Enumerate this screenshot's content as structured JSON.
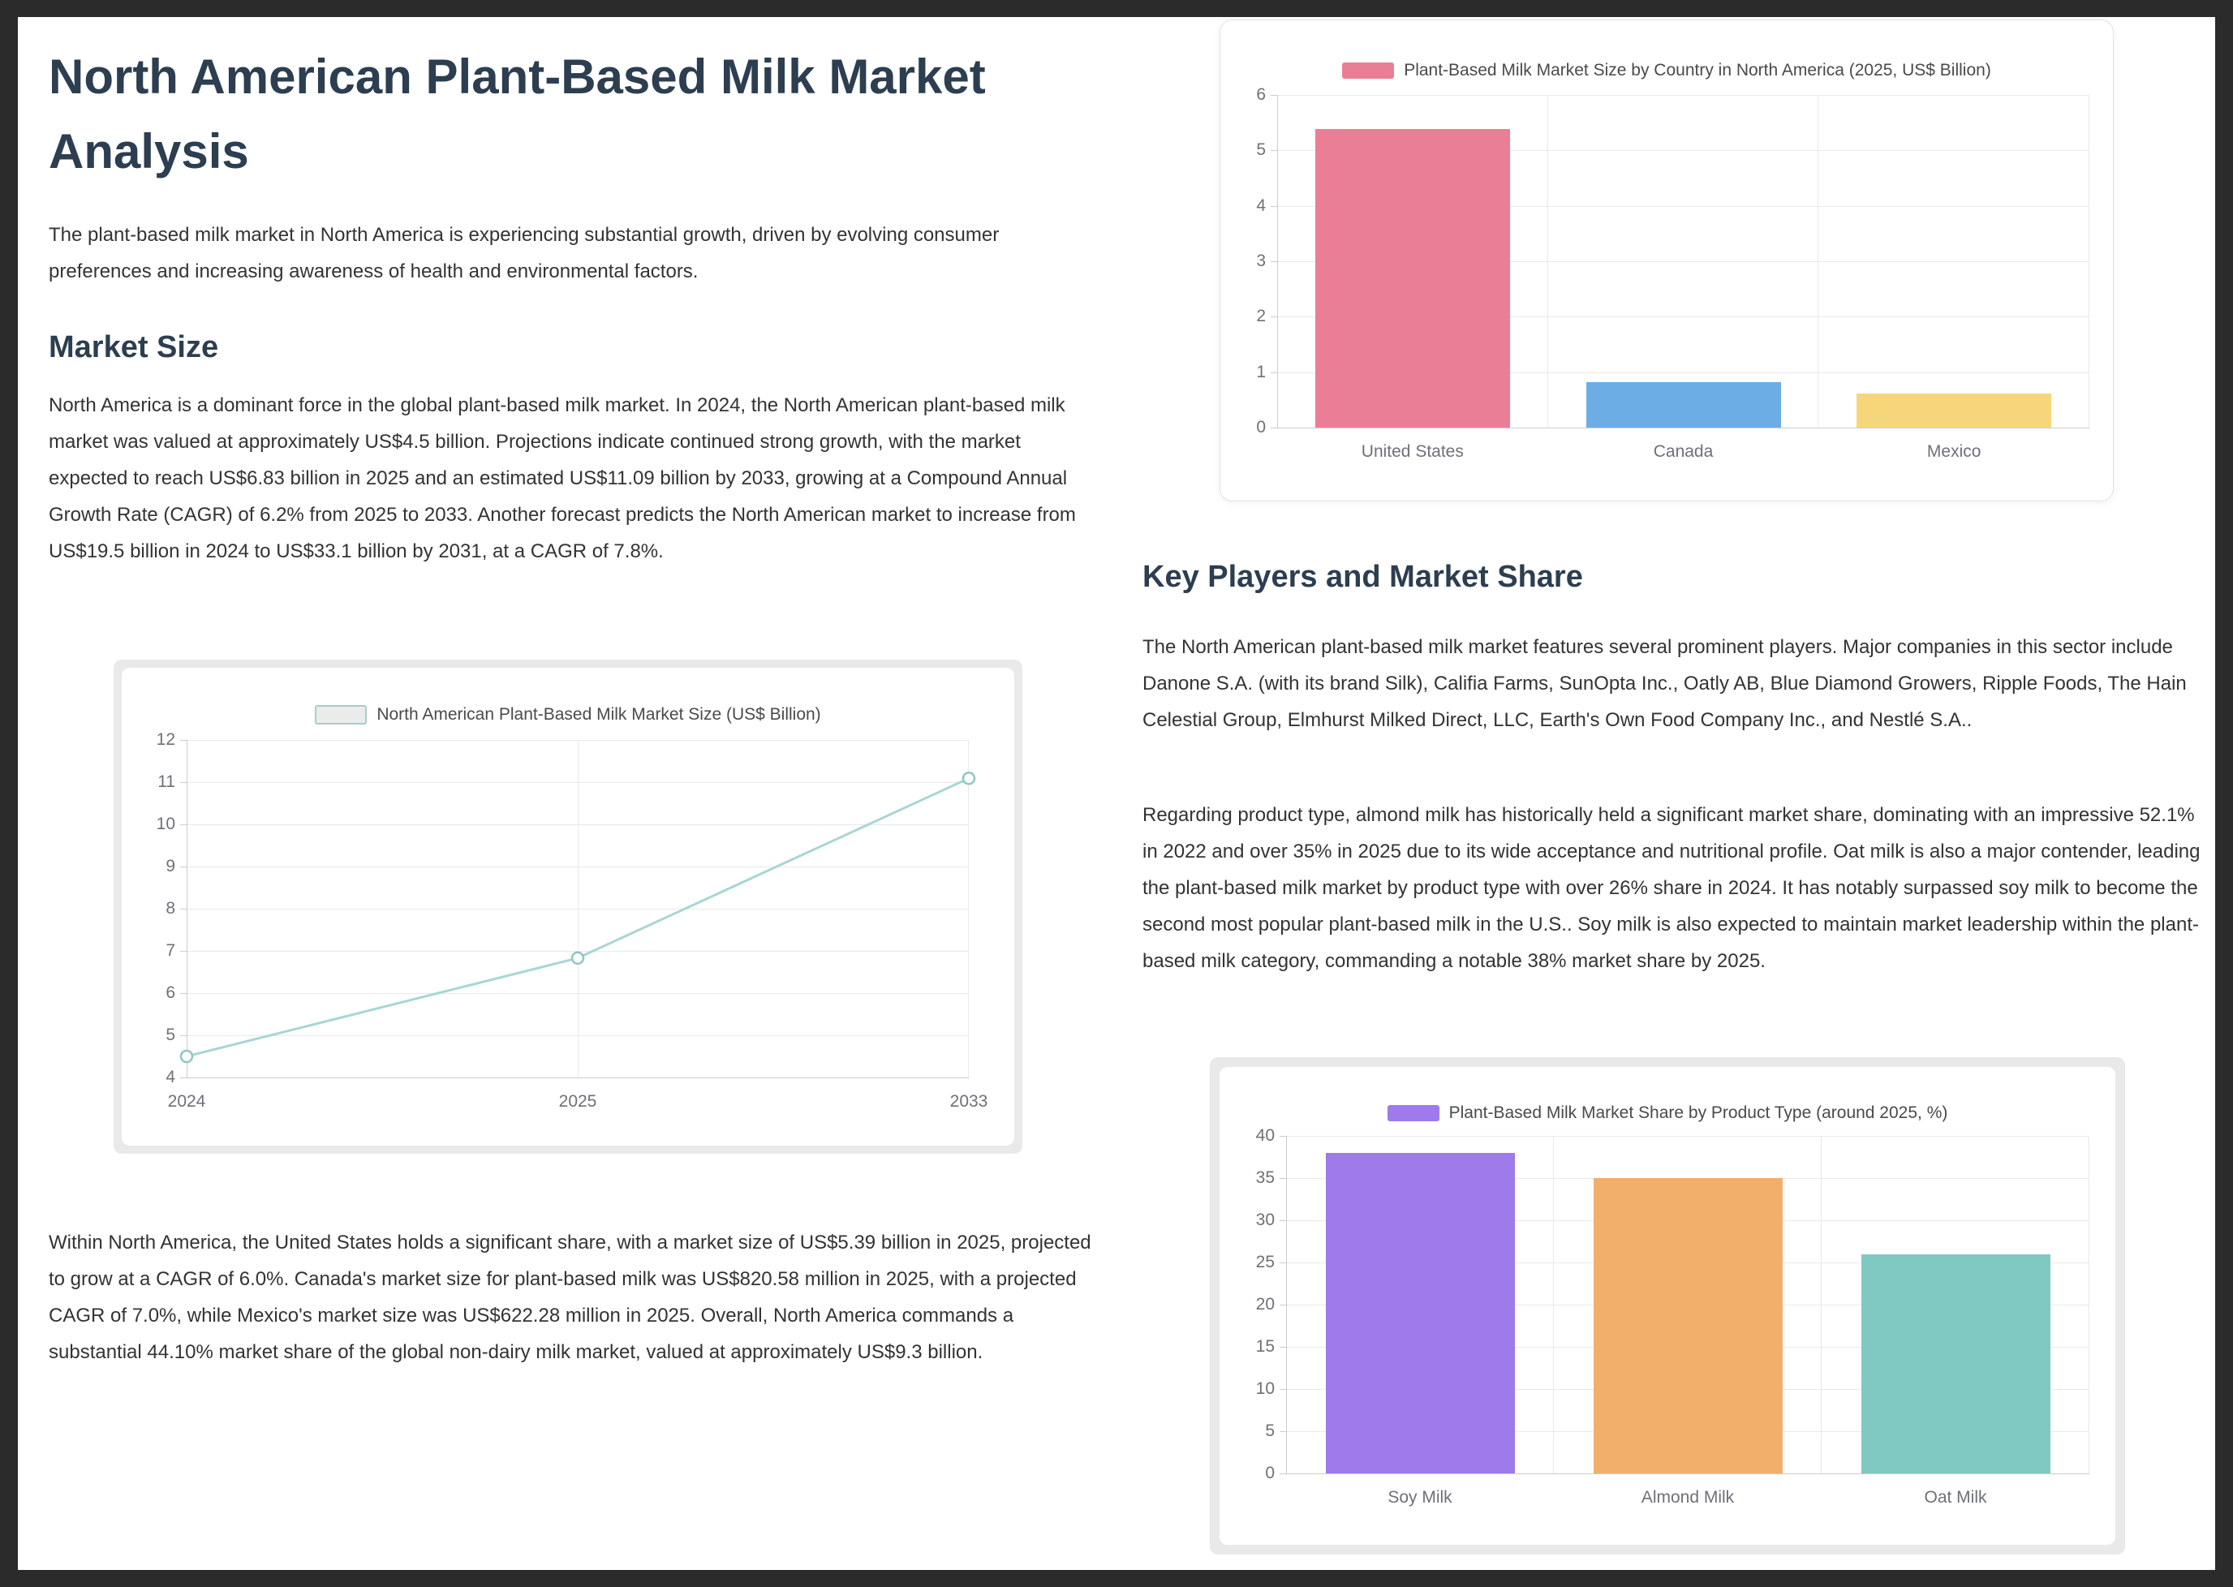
{
  "page": {
    "title": "North American Plant-Based Milk Market Analysis",
    "intro": "The plant-based milk market in North America is experiencing substantial growth, driven by evolving consumer preferences and increasing awareness of health and environmental factors.",
    "market_size": {
      "heading": "Market Size",
      "p1": "North America is a dominant force in the global plant-based milk market. In 2024, the North American plant-based milk market was valued at approximately US$4.5 billion. Projections indicate continued strong growth, with the market expected to reach US$6.83 billion in 2025 and an estimated US$11.09 billion by 2033, growing at a Compound Annual Growth Rate (CAGR) of 6.2% from 2025 to 2033. Another forecast predicts the North American market to increase from US$19.5 billion in 2024 to US$33.1 billion by 2031, at a CAGR of 7.8%.",
      "p2": "Within North America, the United States holds a significant share, with a market size of US$5.39 billion in 2025, projected to grow at a CAGR of 6.0%. Canada's market size for plant-based milk was US$820.58 million in 2025, with a projected CAGR of 7.0%, while Mexico's market size was US$622.28 million in 2025. Overall, North America commands a substantial 44.10% market share of the global non-dairy milk market, valued at approximately US$9.3 billion."
    },
    "key_players": {
      "heading": "Key Players and Market Share",
      "p1": "The North American plant-based milk market features several prominent players. Major companies in this sector include Danone S.A. (with its brand Silk), Califia Farms, SunOpta Inc., Oatly AB, Blue Diamond Growers, Ripple Foods, The Hain Celestial Group, Elmhurst Milked Direct, LLC, Earth's Own Food Company Inc., and Nestlé S.A..",
      "p2": "Regarding product type, almond milk has historically held a significant market share, dominating with an impressive 52.1% in 2022 and over 35% in 2025 due to its wide acceptance and nutritional profile. Oat milk is also a major contender, leading the plant-based milk market by product type with over 26% share in 2024. It has notably surpassed soy milk to become the second most popular plant-based milk in the U.S.. Soy milk is also expected to maintain market leadership within the plant-based milk category, commanding a notable 38% market share by 2025."
    }
  },
  "colors": {
    "heading": "#2c3e50",
    "body_text": "#333333",
    "page_background": "#ffffff",
    "outer_background": "#2b2b2b",
    "gridline": "#e9e9e9",
    "axis_line": "#cccccc",
    "axis_label": "#6e7079"
  },
  "chart_data": [
    {
      "type": "line",
      "legend": "North American Plant-Based Milk Market Size (US$ Billion)",
      "x": [
        "2024",
        "2025",
        "2033"
      ],
      "values": [
        4.5,
        6.83,
        11.09
      ],
      "ylim": [
        4,
        12
      ],
      "ytick_step": 1,
      "line_color": "#a9d6d2",
      "marker_stroke": "#8ec6c1",
      "legend_position": "top",
      "grid": true
    },
    {
      "type": "bar",
      "legend": "Plant-Based Milk Market Size by Country in North America (2025, US$ Billion)",
      "categories": [
        "United States",
        "Canada",
        "Mexico"
      ],
      "values": [
        5.39,
        0.82,
        0.62
      ],
      "bar_colors": [
        "#ea7e96",
        "#6dade5",
        "#f6d67b"
      ],
      "legend_color": "#ea7e96",
      "ylim": [
        0,
        6
      ],
      "ytick_step": 1,
      "legend_position": "top",
      "grid": true
    },
    {
      "type": "bar",
      "legend": "Plant-Based Milk Market Share by Product Type (around 2025, %)",
      "categories": [
        "Soy Milk",
        "Almond Milk",
        "Oat Milk"
      ],
      "values": [
        38,
        35,
        26
      ],
      "bar_colors": [
        "#9e7aea",
        "#f1af6b",
        "#80c9c2"
      ],
      "legend_color": "#9e7aea",
      "ylim": [
        0,
        40
      ],
      "ytick_step": 5,
      "legend_position": "top",
      "grid": true
    }
  ]
}
